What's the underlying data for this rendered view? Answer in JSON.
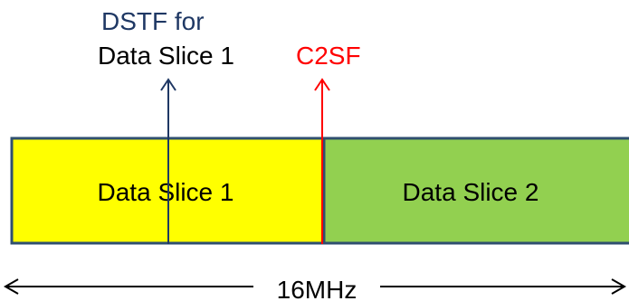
{
  "dstf_label": {
    "line1": "DSTF for",
    "line2": "Data Slice 1",
    "color_line1": "#1f3864",
    "color_line2": "#000000"
  },
  "c2sf_label": {
    "text": "C2SF",
    "color": "#ff0000"
  },
  "slices": [
    {
      "name": "Data Slice 1",
      "fill": "#ffff00"
    },
    {
      "name": "Data Slice 2",
      "fill": "#92d050"
    }
  ],
  "bandwidth": {
    "label": "16MHz"
  },
  "colors": {
    "border": "#2f4f6f",
    "dstf_arrow": "#1f3864",
    "c2sf_arrow": "#ff0000",
    "bandwidth_arrow": "#000000"
  }
}
